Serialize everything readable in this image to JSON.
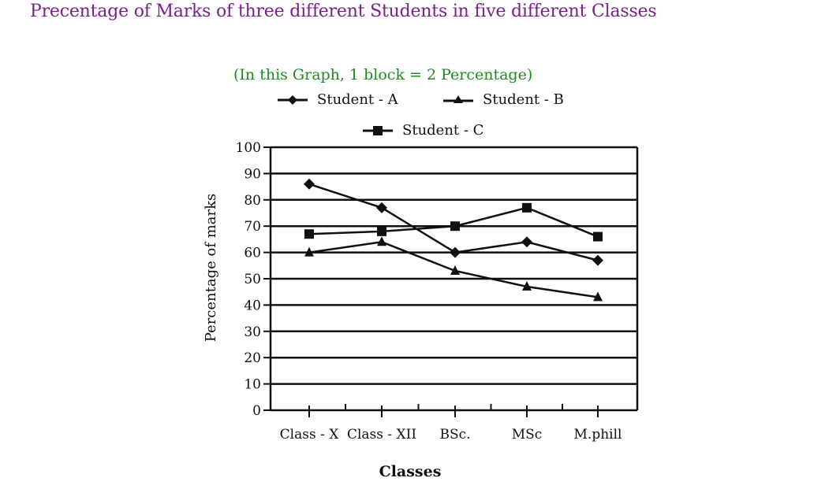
{
  "page": {
    "title": "Precentage of Marks of three different Students in five different  Classes",
    "note": "(In this Graph, 1 block = 2 Percentage)"
  },
  "colors": {
    "title": "#7a1f8c",
    "note": "#1e8a1e",
    "lines": "#111111"
  },
  "legend": [
    {
      "label": "Student - A",
      "marker": "diamond"
    },
    {
      "label": "Student - B",
      "marker": "triangle"
    },
    {
      "label": "Student - C",
      "marker": "square"
    }
  ],
  "chart_data": {
    "type": "line",
    "categories": [
      "Class - X",
      "Class - XII",
      "BSc.",
      "MSc",
      "M.phill"
    ],
    "series": [
      {
        "name": "Student - A",
        "marker": "diamond",
        "values": [
          86,
          77,
          60,
          64,
          57
        ]
      },
      {
        "name": "Student - B",
        "marker": "triangle",
        "values": [
          60,
          64,
          53,
          47,
          43
        ]
      },
      {
        "name": "Student - C",
        "marker": "square",
        "values": [
          67,
          68,
          70,
          77,
          66
        ]
      }
    ],
    "xlabel": "Classes",
    "ylabel": "Percentage of marks",
    "ylim": [
      0,
      100
    ],
    "yticks": [
      0,
      10,
      20,
      30,
      40,
      50,
      60,
      70,
      80,
      90,
      100
    ],
    "grid": true,
    "legend_position": "top"
  }
}
